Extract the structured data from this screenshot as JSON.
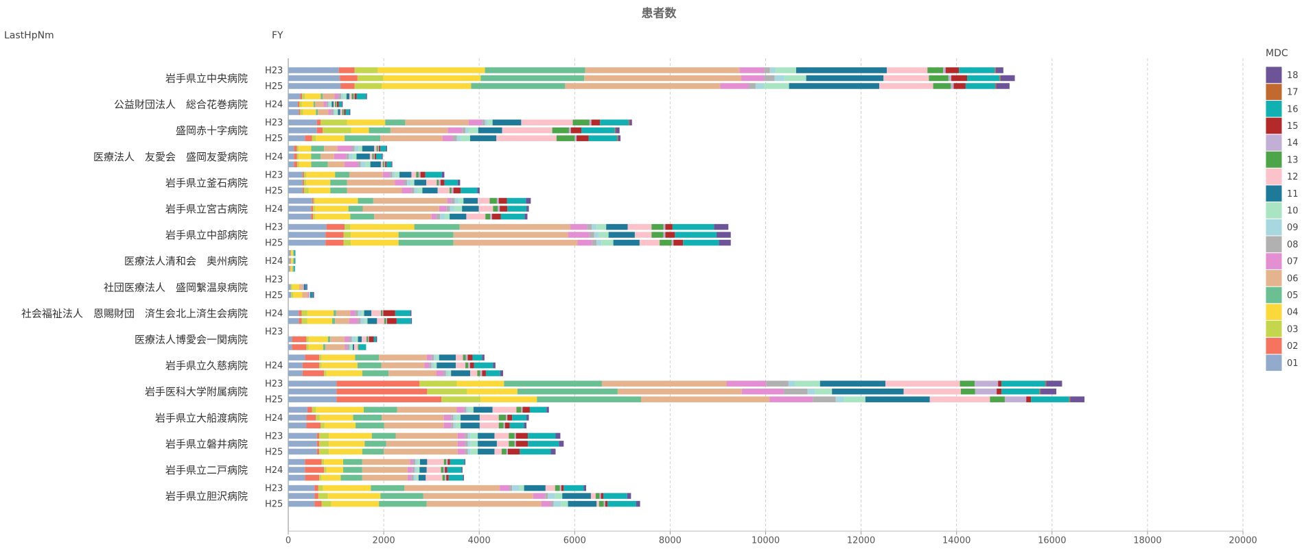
{
  "chart_data": {
    "type": "bar",
    "orientation": "horizontal",
    "stacked": true,
    "title": "患者数",
    "row_header": "LastHpNm",
    "fy_header": "FY",
    "legend_title": "MDC",
    "legend": "right",
    "grid": true,
    "xlim": [
      0,
      20000
    ],
    "xticks": [
      0,
      2000,
      4000,
      6000,
      8000,
      10000,
      12000,
      14000,
      16000,
      18000,
      20000
    ],
    "hospitals": [
      "岩手県立中央病院",
      "公益財団法人　総合花巻病院",
      "盛岡赤十字病院",
      "医療法人　友愛会　盛岡友愛病院",
      "岩手県立釜石病院",
      "岩手県立宮古病院",
      "岩手県立中部病院",
      "医療法人清和会　奥州病院",
      "社団医療法人　盛岡繋温泉病院",
      "社会福祉法人　恩賜財団　済生会北上済生会病院",
      "医療法人博愛会一関病院",
      "岩手県立久慈病院",
      "岩手医科大学附属病院",
      "岩手県立大船渡病院",
      "岩手県立磐井病院",
      "岩手県立二戸病院",
      "岩手県立胆沢病院"
    ],
    "row_labels": [
      "H23",
      null,
      "H25",
      null,
      "H24",
      null,
      "H23",
      null,
      "H25",
      null,
      "H24",
      null,
      "H23",
      null,
      "H25",
      null,
      "H24",
      null,
      "H23",
      null,
      "H25",
      null,
      "H24",
      null,
      "H23",
      null,
      "H25",
      null,
      "H24",
      null,
      "H23",
      null,
      null,
      null,
      "H24",
      null,
      "H23",
      null,
      "H25",
      null,
      "H24",
      null,
      "H23",
      null,
      "H25",
      null,
      "H24",
      null,
      "H23",
      null,
      "H25"
    ],
    "series": [
      {
        "name": "01",
        "color": "#92aacb",
        "values": [
          1060,
          1080,
          1100,
          250,
          200,
          220,
          600,
          600,
          350,
          120,
          120,
          120,
          300,
          300,
          300,
          500,
          480,
          480,
          800,
          780,
          780,
          40,
          40,
          30,
          null,
          50,
          60,
          null,
          220,
          220,
          null,
          80,
          80,
          350,
          300,
          300,
          1010,
          1010,
          1010,
          400,
          380,
          380,
          600,
          600,
          600,
          350,
          350,
          350,
          550,
          550,
          550
        ]
      },
      {
        "name": "02",
        "color": "#f5735f",
        "values": [
          330,
          370,
          290,
          40,
          30,
          30,
          80,
          120,
          150,
          60,
          60,
          70,
          30,
          30,
          30,
          30,
          40,
          40,
          380,
          380,
          380,
          10,
          10,
          10,
          null,
          0,
          0,
          null,
          60,
          60,
          null,
          300,
          300,
          300,
          350,
          450,
          1740,
          1900,
          2200,
          100,
          200,
          300,
          50,
          50,
          50,
          350,
          400,
          300,
          80,
          80,
          150
        ]
      },
      {
        "name": "03",
        "color": "#c4d64b",
        "values": [
          490,
          540,
          570,
          60,
          50,
          60,
          550,
          600,
          80,
          40,
          40,
          40,
          50,
          50,
          100,
          30,
          40,
          40,
          120,
          150,
          150,
          10,
          10,
          10,
          null,
          30,
          40,
          null,
          120,
          120,
          null,
          50,
          50,
          50,
          50,
          50,
          780,
          840,
          820,
          80,
          80,
          80,
          200,
          200,
          200,
          50,
          50,
          50,
          100,
          200,
          200
        ]
      },
      {
        "name": "04",
        "color": "#fcd93a",
        "values": [
          2240,
          2040,
          1870,
          330,
          250,
          270,
          800,
          370,
          600,
          260,
          260,
          250,
          600,
          500,
          450,
          900,
          700,
          740,
          1340,
          1000,
          1000,
          40,
          40,
          40,
          null,
          150,
          190,
          null,
          550,
          520,
          null,
          400,
          300,
          700,
          750,
          750,
          990,
          1050,
          1180,
          1000,
          700,
          650,
          900,
          750,
          700,
          400,
          350,
          400,
          1000,
          1100,
          1000
        ]
      },
      {
        "name": "05",
        "color": "#6abf93",
        "values": [
          2100,
          2170,
          1970,
          40,
          30,
          40,
          420,
          450,
          750,
          270,
          200,
          350,
          300,
          350,
          350,
          320,
          300,
          500,
          950,
          1150,
          1150,
          10,
          10,
          10,
          null,
          0,
          0,
          null,
          50,
          60,
          null,
          50,
          50,
          500,
          500,
          550,
          2050,
          2100,
          2180,
          700,
          600,
          600,
          500,
          450,
          450,
          400,
          400,
          450,
          700,
          900,
          1000
        ]
      },
      {
        "name": "06",
        "color": "#e6b38f",
        "values": [
          3230,
          3290,
          3250,
          250,
          180,
          220,
          1330,
          1200,
          1300,
          280,
          280,
          350,
          700,
          1000,
          1150,
          1550,
          1600,
          1200,
          2320,
          2400,
          2600,
          10,
          10,
          10,
          null,
          80,
          120,
          null,
          300,
          300,
          null,
          300,
          400,
          1000,
          900,
          1000,
          2610,
          2600,
          2690,
          1250,
          1300,
          1250,
          1300,
          1500,
          1550,
          1000,
          950,
          950,
          2000,
          2300,
          2400
        ]
      },
      {
        "name": "07",
        "color": "#e58fd3",
        "values": [
          520,
          480,
          590,
          80,
          60,
          60,
          280,
          300,
          220,
          300,
          250,
          280,
          150,
          200,
          200,
          80,
          150,
          100,
          350,
          450,
          300,
          0,
          0,
          0,
          null,
          20,
          30,
          null,
          100,
          180,
          null,
          100,
          50,
          100,
          100,
          150,
          830,
          880,
          910,
          150,
          150,
          150,
          150,
          150,
          150,
          60,
          100,
          80,
          200,
          250,
          200
        ]
      },
      {
        "name": "08",
        "color": "#b1b1b1",
        "values": [
          120,
          220,
          150,
          60,
          40,
          50,
          60,
          70,
          80,
          60,
          60,
          60,
          50,
          60,
          60,
          80,
          80,
          80,
          100,
          100,
          100,
          0,
          0,
          0,
          null,
          0,
          0,
          null,
          60,
          60,
          null,
          50,
          50,
          50,
          50,
          50,
          470,
          500,
          480,
          50,
          50,
          50,
          60,
          60,
          60,
          50,
          50,
          50,
          60,
          60,
          60
        ]
      },
      {
        "name": "09",
        "color": "#a8d8df",
        "values": [
          120,
          200,
          180,
          50,
          30,
          40,
          60,
          70,
          80,
          80,
          80,
          100,
          50,
          70,
          70,
          80,
          100,
          100,
          100,
          100,
          100,
          0,
          0,
          0,
          null,
          0,
          0,
          null,
          80,
          80,
          null,
          80,
          30,
          50,
          50,
          50,
          140,
          160,
          170,
          50,
          50,
          50,
          60,
          60,
          60,
          50,
          50,
          50,
          150,
          150,
          150
        ]
      },
      {
        "name": "10",
        "color": "#a9e5c2",
        "values": [
          430,
          460,
          520,
          60,
          40,
          50,
          100,
          200,
          200,
          80,
          80,
          100,
          100,
          80,
          100,
          100,
          150,
          100,
          200,
          200,
          250,
          0,
          0,
          0,
          null,
          0,
          20,
          null,
          50,
          60,
          null,
          50,
          40,
          60,
          60,
          60,
          520,
          350,
          450,
          100,
          100,
          100,
          150,
          150,
          150,
          50,
          50,
          50,
          100,
          150,
          150
        ]
      },
      {
        "name": "11",
        "color": "#1f7a9a",
        "values": [
          1900,
          1620,
          1890,
          60,
          40,
          50,
          600,
          500,
          550,
          250,
          280,
          220,
          250,
          250,
          320,
          300,
          350,
          350,
          450,
          550,
          550,
          0,
          0,
          0,
          null,
          30,
          30,
          null,
          150,
          200,
          null,
          80,
          30,
          350,
          400,
          400,
          1370,
          1500,
          1350,
          400,
          400,
          400,
          350,
          400,
          350,
          150,
          150,
          150,
          450,
          600,
          600
        ]
      },
      {
        "name": "12",
        "color": "#fbc2ca",
        "values": [
          850,
          950,
          1130,
          50,
          30,
          40,
          1080,
          1050,
          1260,
          50,
          50,
          40,
          100,
          220,
          250,
          250,
          300,
          400,
          500,
          350,
          420,
          0,
          0,
          0,
          null,
          0,
          0,
          null,
          200,
          150,
          null,
          100,
          80,
          150,
          200,
          150,
          1560,
          1200,
          1260,
          500,
          400,
          400,
          300,
          250,
          150,
          350,
          300,
          350,
          200,
          100,
          50
        ]
      },
      {
        "name": "13",
        "color": "#4da549",
        "values": [
          330,
          410,
          370,
          40,
          30,
          30,
          350,
          350,
          380,
          30,
          30,
          30,
          50,
          40,
          40,
          150,
          100,
          100,
          250,
          250,
          250,
          0,
          0,
          0,
          null,
          0,
          0,
          null,
          30,
          40,
          null,
          30,
          20,
          60,
          60,
          60,
          310,
          300,
          310,
          100,
          150,
          100,
          120,
          120,
          100,
          50,
          50,
          50,
          100,
          80,
          100
        ]
      },
      {
        "name": "14",
        "color": "#c2afd6",
        "values": [
          50,
          60,
          60,
          20,
          10,
          10,
          40,
          40,
          40,
          20,
          20,
          20,
          40,
          40,
          40,
          40,
          40,
          40,
          40,
          40,
          40,
          0,
          0,
          0,
          null,
          0,
          0,
          null,
          20,
          20,
          null,
          20,
          0,
          40,
          40,
          40,
          490,
          450,
          450,
          30,
          30,
          30,
          30,
          30,
          30,
          30,
          30,
          30,
          30,
          30,
          30
        ]
      },
      {
        "name": "15",
        "color": "#b42a2a",
        "values": [
          280,
          330,
          250,
          40,
          40,
          30,
          180,
          220,
          250,
          30,
          30,
          30,
          100,
          80,
          150,
          170,
          160,
          180,
          150,
          200,
          200,
          0,
          0,
          0,
          null,
          0,
          0,
          null,
          250,
          200,
          null,
          100,
          0,
          100,
          80,
          80,
          70,
          100,
          100,
          150,
          100,
          100,
          250,
          250,
          250,
          50,
          50,
          50,
          50,
          50,
          50
        ]
      },
      {
        "name": "16",
        "color": "#11b1b3",
        "values": [
          750,
          680,
          620,
          200,
          60,
          80,
          600,
          700,
          600,
          120,
          120,
          100,
          350,
          280,
          350,
          400,
          400,
          500,
          870,
          870,
          750,
          30,
          30,
          30,
          null,
          20,
          20,
          null,
          320,
          300,
          null,
          50,
          150,
          200,
          400,
          300,
          920,
          800,
          800,
          350,
          300,
          300,
          580,
          650,
          650,
          300,
          300,
          300,
          420,
          500,
          600
        ]
      },
      {
        "name": "17",
        "color": "#c1692f",
        "values": [
          20,
          20,
          20,
          0,
          0,
          0,
          20,
          20,
          20,
          0,
          0,
          0,
          0,
          0,
          0,
          0,
          0,
          0,
          0,
          0,
          0,
          0,
          0,
          0,
          null,
          0,
          0,
          null,
          0,
          0,
          null,
          0,
          0,
          0,
          0,
          0,
          20,
          20,
          20,
          0,
          0,
          0,
          0,
          0,
          0,
          0,
          0,
          0,
          0,
          0,
          0
        ]
      },
      {
        "name": "18",
        "color": "#6d5498",
        "values": [
          160,
          300,
          280,
          20,
          20,
          20,
          50,
          80,
          50,
          20,
          20,
          20,
          50,
          50,
          50,
          100,
          50,
          60,
          300,
          300,
          250,
          0,
          0,
          0,
          null,
          20,
          30,
          null,
          20,
          20,
          null,
          20,
          0,
          50,
          50,
          60,
          330,
          330,
          300,
          50,
          50,
          50,
          100,
          100,
          100,
          20,
          20,
          20,
          50,
          80,
          80
        ]
      }
    ]
  }
}
